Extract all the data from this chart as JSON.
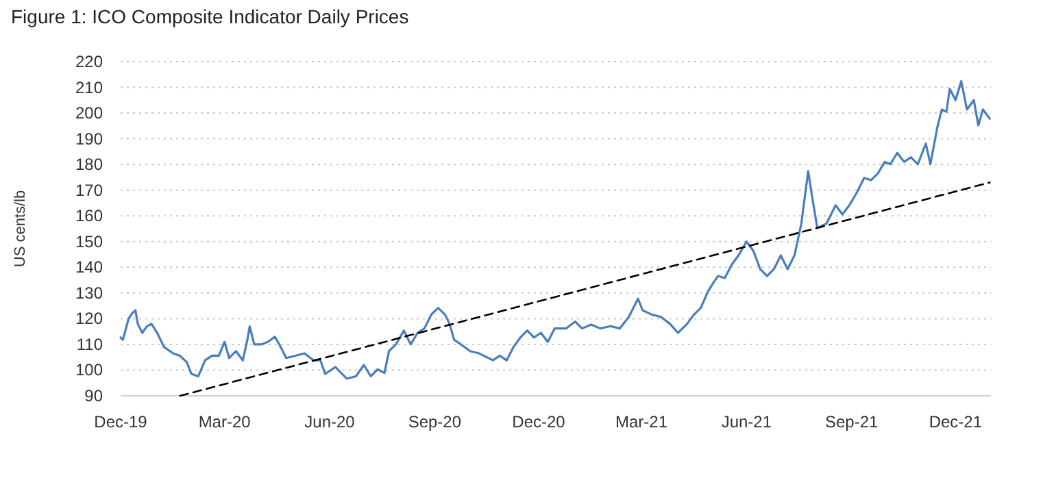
{
  "chart_data": {
    "type": "line",
    "title": "Figure 1: ICO Composite Indicator Daily Prices",
    "ylabel": "US cents/lb",
    "xlim": [
      "2019-12-01",
      "2022-01-01"
    ],
    "ylim": [
      90,
      220
    ],
    "xticks": [
      {
        "value": "2019-12-01",
        "label": "Dec-19"
      },
      {
        "value": "2020-03-01",
        "label": "Mar-20"
      },
      {
        "value": "2020-06-01",
        "label": "Jun-20"
      },
      {
        "value": "2020-09-01",
        "label": "Sep-20"
      },
      {
        "value": "2020-12-01",
        "label": "Dec-20"
      },
      {
        "value": "2021-03-01",
        "label": "Mar-21"
      },
      {
        "value": "2021-06-01",
        "label": "Jun-21"
      },
      {
        "value": "2021-09-01",
        "label": "Sep-21"
      },
      {
        "value": "2021-12-01",
        "label": "Dec-21"
      }
    ],
    "yticks": [
      90,
      100,
      110,
      120,
      130,
      140,
      150,
      160,
      170,
      180,
      190,
      200,
      210,
      220
    ],
    "grid": "y",
    "marker": "none",
    "series": [
      {
        "color": "#4a7ebb",
        "line_style": "solid",
        "x": [
          "2019-12-01",
          "2019-12-03",
          "2019-12-08",
          "2019-12-11",
          "2019-12-14",
          "2019-12-16",
          "2019-12-20",
          "2019-12-24",
          "2019-12-28",
          "2020-01-02",
          "2020-01-08",
          "2020-01-16",
          "2020-01-22",
          "2020-01-28",
          "2020-02-01",
          "2020-02-07",
          "2020-02-13",
          "2020-02-19",
          "2020-02-25",
          "2020-03-01",
          "2020-03-05",
          "2020-03-11",
          "2020-03-17",
          "2020-03-21",
          "2020-03-23",
          "2020-03-27",
          "2020-04-02",
          "2020-04-08",
          "2020-04-14",
          "2020-04-18",
          "2020-04-24",
          "2020-05-02",
          "2020-05-10",
          "2020-05-18",
          "2020-05-24",
          "2020-05-28",
          "2020-06-06",
          "2020-06-16",
          "2020-06-24",
          "2020-07-01",
          "2020-07-07",
          "2020-07-13",
          "2020-07-19",
          "2020-07-23",
          "2020-07-29",
          "2020-08-05",
          "2020-08-11",
          "2020-08-17",
          "2020-08-23",
          "2020-08-29",
          "2020-09-04",
          "2020-09-10",
          "2020-09-14",
          "2020-09-18",
          "2020-09-24",
          "2020-10-02",
          "2020-10-10",
          "2020-10-22",
          "2020-10-28",
          "2020-11-03",
          "2020-11-09",
          "2020-11-15",
          "2020-11-21",
          "2020-11-27",
          "2020-12-03",
          "2020-12-09",
          "2020-12-15",
          "2020-12-25",
          "2021-01-02",
          "2021-01-08",
          "2021-01-16",
          "2021-01-24",
          "2021-02-02",
          "2021-02-10",
          "2021-02-18",
          "2021-02-26",
          "2021-03-02",
          "2021-03-10",
          "2021-03-18",
          "2021-03-26",
          "2021-04-02",
          "2021-04-10",
          "2021-04-16",
          "2021-04-22",
          "2021-04-28",
          "2021-05-03",
          "2021-05-07",
          "2021-05-13",
          "2021-05-19",
          "2021-05-25",
          "2021-06-01",
          "2021-06-07",
          "2021-06-13",
          "2021-06-19",
          "2021-06-25",
          "2021-07-01",
          "2021-07-07",
          "2021-07-13",
          "2021-07-19",
          "2021-07-25",
          "2021-07-29",
          "2021-08-02",
          "2021-08-10",
          "2021-08-18",
          "2021-08-24",
          "2021-08-30",
          "2021-09-06",
          "2021-09-12",
          "2021-09-18",
          "2021-09-24",
          "2021-09-30",
          "2021-10-05",
          "2021-10-11",
          "2021-10-17",
          "2021-10-23",
          "2021-10-29",
          "2021-11-05",
          "2021-11-09",
          "2021-11-15",
          "2021-11-19",
          "2021-11-23",
          "2021-11-26",
          "2021-12-01",
          "2021-12-06",
          "2021-12-11",
          "2021-12-17",
          "2021-12-21",
          "2021-12-25",
          "2021-12-31"
        ],
        "values": [
          112.7,
          111.8,
          120,
          122,
          123.3,
          118,
          114.5,
          117,
          118,
          114.5,
          109,
          106.5,
          105.6,
          103,
          98.5,
          97.6,
          103.8,
          105.6,
          105.6,
          111,
          104.7,
          107.4,
          103.8,
          111.8,
          117,
          110,
          110,
          111,
          113,
          110,
          104.7,
          105.6,
          106.5,
          103.8,
          103.8,
          98.5,
          101.2,
          96.7,
          97.6,
          102,
          97.6,
          100.3,
          98.9,
          107.4,
          110,
          115.4,
          110,
          114.5,
          116.2,
          121.6,
          124.2,
          121.6,
          118,
          111.8,
          110,
          107.4,
          106.5,
          103.8,
          105.6,
          103.8,
          109,
          112.7,
          115.4,
          112.7,
          114.5,
          111,
          116.2,
          116.2,
          118.9,
          116.2,
          117.7,
          116.2,
          117.1,
          116.2,
          120.7,
          127.8,
          123.3,
          121.6,
          120.7,
          118,
          114.5,
          118,
          121.6,
          124.2,
          130.4,
          134,
          136.6,
          135.8,
          141,
          144.6,
          150,
          146.4,
          139.3,
          136.6,
          139.3,
          144.6,
          139.3,
          144.6,
          157,
          177.4,
          165.9,
          155.3,
          157,
          164.1,
          160.6,
          164.1,
          169.4,
          174.8,
          173.9,
          176.5,
          181,
          180.1,
          184.5,
          181,
          182.8,
          180.1,
          188.1,
          180.1,
          194.3,
          201.4,
          200.5,
          209.4,
          205,
          212.4,
          201.4,
          205,
          195.2,
          201.4,
          197.8
        ]
      },
      {
        "color": "#000000",
        "line_style": "dashed",
        "x": [
          "2020-01-22",
          "2021-12-31"
        ],
        "values": [
          90,
          173
        ]
      }
    ]
  }
}
